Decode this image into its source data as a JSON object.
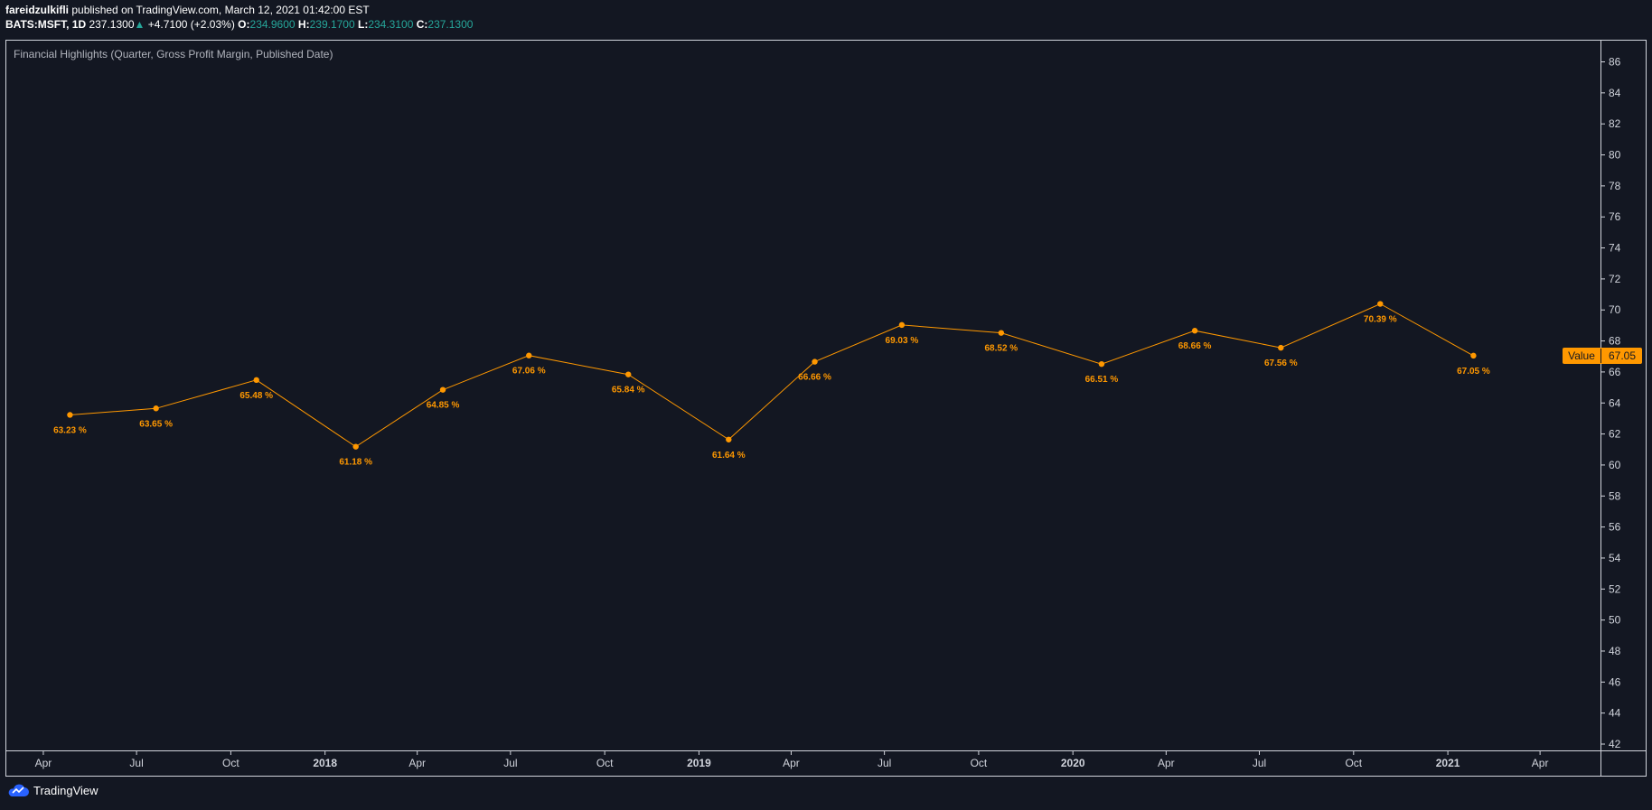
{
  "header": {
    "author": "fareidzulkifli",
    "published_text": "published on TradingView.com, March 12, 2021 01:42:00 EST",
    "symbol": "BATS:MSFT, 1D",
    "last": "237.1300",
    "change": "+4.7100 (+2.03%)",
    "open_label": "O:",
    "open": "234.9600",
    "high_label": "H:",
    "high": "239.1700",
    "low_label": "L:",
    "low": "234.3100",
    "close_label": "C:",
    "close": "237.1300"
  },
  "panel": {
    "title": "Financial Highlights (Quarter, Gross Profit Margin, Published Date)"
  },
  "price_tag": {
    "label": "Value",
    "value": "67.05"
  },
  "footer": {
    "brand": "TradingView"
  },
  "colors": {
    "background": "#131722",
    "series": "#ff9800",
    "axis_text": "#d1d4dc",
    "border": "#d1d4dc",
    "positive": "#26a69a"
  },
  "chart_data": {
    "type": "line",
    "title": "Financial Highlights (Quarter, Gross Profit Margin, Published Date)",
    "xlabel": "",
    "ylabel": "",
    "ylim": [
      42,
      86
    ],
    "yticks": [
      42,
      44,
      46,
      48,
      50,
      52,
      54,
      56,
      58,
      60,
      62,
      64,
      66,
      68,
      70,
      72,
      74,
      76,
      78,
      80,
      82,
      84,
      86
    ],
    "xlim": [
      "2017-02-23",
      "2021-05-30"
    ],
    "xticks": [
      {
        "date": "2017-04-01",
        "label": "Apr"
      },
      {
        "date": "2017-07-01",
        "label": "Jul"
      },
      {
        "date": "2017-10-01",
        "label": "Oct"
      },
      {
        "date": "2018-01-01",
        "label": "2018"
      },
      {
        "date": "2018-04-01",
        "label": "Apr"
      },
      {
        "date": "2018-07-01",
        "label": "Jul"
      },
      {
        "date": "2018-10-01",
        "label": "Oct"
      },
      {
        "date": "2019-01-01",
        "label": "2019"
      },
      {
        "date": "2019-04-01",
        "label": "Apr"
      },
      {
        "date": "2019-07-01",
        "label": "Jul"
      },
      {
        "date": "2019-10-01",
        "label": "Oct"
      },
      {
        "date": "2020-01-01",
        "label": "2020"
      },
      {
        "date": "2020-04-01",
        "label": "Apr"
      },
      {
        "date": "2020-07-01",
        "label": "Jul"
      },
      {
        "date": "2020-10-01",
        "label": "Oct"
      },
      {
        "date": "2021-01-01",
        "label": "2021"
      },
      {
        "date": "2021-04-01",
        "label": "Apr"
      }
    ],
    "grid": false,
    "series": [
      {
        "points": [
          {
            "x": "2017-04-27",
            "y": 63.23,
            "label": "63.23 %"
          },
          {
            "x": "2017-07-20",
            "y": 63.65,
            "label": "63.65 %"
          },
          {
            "x": "2017-10-26",
            "y": 65.48,
            "label": "65.48 %"
          },
          {
            "x": "2018-01-31",
            "y": 61.18,
            "label": "61.18 %"
          },
          {
            "x": "2018-04-26",
            "y": 64.85,
            "label": "64.85 %"
          },
          {
            "x": "2018-07-19",
            "y": 67.06,
            "label": "67.06 %"
          },
          {
            "x": "2018-10-24",
            "y": 65.84,
            "label": "65.84 %"
          },
          {
            "x": "2019-01-30",
            "y": 61.64,
            "label": "61.64 %"
          },
          {
            "x": "2019-04-24",
            "y": 66.66,
            "label": "66.66 %"
          },
          {
            "x": "2019-07-18",
            "y": 69.03,
            "label": "69.03 %"
          },
          {
            "x": "2019-10-23",
            "y": 68.52,
            "label": "68.52 %"
          },
          {
            "x": "2020-01-29",
            "y": 66.51,
            "label": "66.51 %"
          },
          {
            "x": "2020-04-29",
            "y": 68.66,
            "label": "68.66 %"
          },
          {
            "x": "2020-07-22",
            "y": 67.56,
            "label": "67.56 %"
          },
          {
            "x": "2020-10-27",
            "y": 70.39,
            "label": "70.39 %"
          },
          {
            "x": "2021-01-26",
            "y": 67.05,
            "label": "67.05 %"
          }
        ]
      }
    ]
  }
}
